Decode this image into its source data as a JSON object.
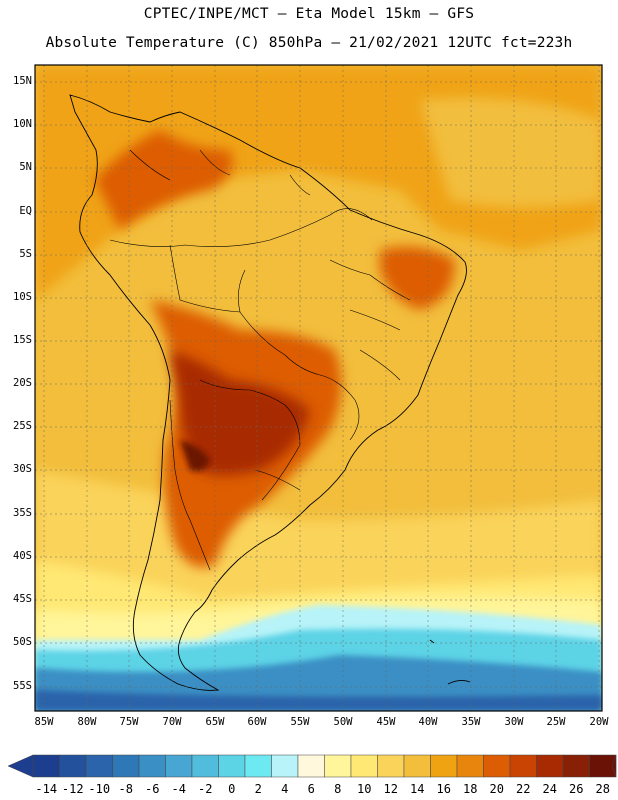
{
  "header": {
    "line1": "CPTEC/INPE/MCT –  Eta Model 15km – GFS",
    "line2": "Absolute Temperature (C) 850hPa – 21/02/2021 12UTC fct=223h"
  },
  "map": {
    "region": "South America",
    "variable": "Absolute Temperature (C) 850hPa",
    "lat_labels": [
      "15N",
      "10N",
      "5N",
      "EQ",
      "5S",
      "10S",
      "15S",
      "20S",
      "25S",
      "30S",
      "35S",
      "40S",
      "45S",
      "50S",
      "55S"
    ],
    "lon_labels": [
      "85W",
      "80W",
      "75W",
      "70W",
      "65W",
      "60W",
      "55W",
      "50W",
      "45W",
      "40W",
      "35W",
      "30W",
      "25W",
      "20W"
    ]
  },
  "colorbar": {
    "labels": [
      "-14",
      "-12",
      "-10",
      "-8",
      "-6",
      "-4",
      "-2",
      "0",
      "2",
      "4",
      "6",
      "8",
      "10",
      "12",
      "14",
      "16",
      "18",
      "20",
      "22",
      "24",
      "26",
      "28"
    ],
    "colors": [
      "#1d3e8f",
      "#24519c",
      "#2b64aa",
      "#2f78b7",
      "#3a8fc4",
      "#48a6d2",
      "#52bcdc",
      "#5dd3e6",
      "#6ce9f1",
      "#b7f3f8",
      "#fff8dc",
      "#fff59a",
      "#ffe873",
      "#fad35a",
      "#f2be3c",
      "#f0a312",
      "#e8850c",
      "#dd5d05",
      "#c94303",
      "#a82a03",
      "#872004",
      "#6a1206"
    ]
  }
}
